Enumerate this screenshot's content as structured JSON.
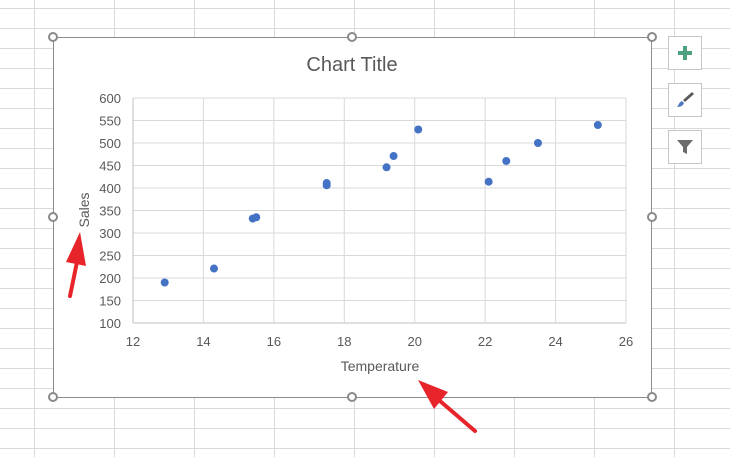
{
  "chart_data": {
    "type": "scatter",
    "title": "Chart Title",
    "xlabel": "Temperature",
    "ylabel": "Sales",
    "xlim": [
      12,
      26
    ],
    "ylim": [
      100,
      600
    ],
    "x_ticks": [
      "12",
      "14",
      "16",
      "18",
      "20",
      "22",
      "24",
      "26"
    ],
    "y_ticks": [
      "100",
      "150",
      "200",
      "250",
      "300",
      "350",
      "400",
      "450",
      "500",
      "550",
      "600"
    ],
    "grid": true,
    "legend": "none",
    "points": [
      {
        "x": 12.9,
        "y": 190
      },
      {
        "x": 14.3,
        "y": 221
      },
      {
        "x": 15.4,
        "y": 332
      },
      {
        "x": 15.5,
        "y": 335
      },
      {
        "x": 17.5,
        "y": 406
      },
      {
        "x": 17.5,
        "y": 411
      },
      {
        "x": 19.2,
        "y": 446
      },
      {
        "x": 19.4,
        "y": 471
      },
      {
        "x": 20.1,
        "y": 530
      },
      {
        "x": 22.1,
        "y": 414
      },
      {
        "x": 22.6,
        "y": 460
      },
      {
        "x": 23.5,
        "y": 500
      },
      {
        "x": 25.2,
        "y": 540
      }
    ],
    "marker_color": "#4472c4"
  },
  "toolbar": {
    "chart_elements_icon": "plus-icon",
    "chart_styles_icon": "paintbrush-icon",
    "chart_filters_icon": "funnel-icon"
  },
  "colors": {
    "arrow": "#e8242b",
    "plus": "#4ea27d"
  }
}
